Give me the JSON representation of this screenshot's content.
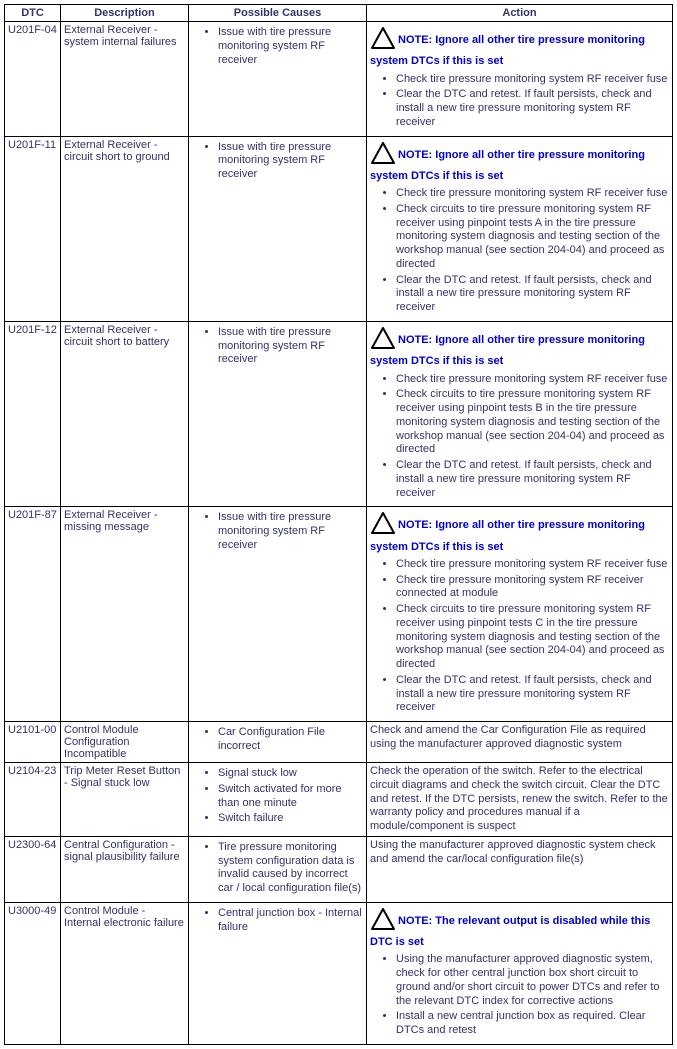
{
  "colors": {
    "text": "#333366",
    "note": "#0000cc",
    "border": "#000000",
    "background": "#ffffff"
  },
  "headers": {
    "dtc": "DTC",
    "description": "Description",
    "causes": "Possible Causes",
    "action": "Action"
  },
  "note_prefix": "NOTE: ",
  "rows": [
    {
      "dtc": "U201F-04",
      "desc": "External Receiver - system internal failures",
      "causes": [
        "Issue with tire pressure monitoring system RF receiver"
      ],
      "note": "Ignore all other tire pressure monitoring system DTCs if this is set",
      "actions": [
        "Check tire pressure monitoring system RF receiver fuse",
        "Clear the DTC and retest. If fault persists, check and install a new tire pressure monitoring system RF receiver"
      ]
    },
    {
      "dtc": "U201F-11",
      "desc": "External Receiver - circuit short to ground",
      "causes": [
        "Issue with tire pressure monitoring system RF receiver"
      ],
      "note": "Ignore all other tire pressure monitoring system DTCs if this is set",
      "actions": [
        "Check tire pressure monitoring system RF receiver fuse",
        "Check circuits to tire pressure monitoring system RF receiver using pinpoint tests A in the tire pressure monitoring system diagnosis and testing section of the workshop manual (see section 204-04) and proceed as directed",
        "Clear the DTC and retest. If fault persists, check and install a new tire pressure monitoring system RF receiver"
      ]
    },
    {
      "dtc": "U201F-12",
      "desc": "External Receiver - circuit short to battery",
      "causes": [
        "Issue with tire pressure monitoring system RF receiver"
      ],
      "note": "Ignore all other tire pressure monitoring system DTCs if this is set",
      "actions": [
        "Check tire pressure monitoring system RF receiver fuse",
        "Check circuits to tire pressure monitoring system RF receiver using pinpoint tests B in the tire pressure monitoring system diagnosis and testing section of the workshop manual (see section 204-04) and proceed as directed",
        "Clear the DTC and retest. If fault persists, check and install a new tire pressure monitoring system RF receiver"
      ]
    },
    {
      "dtc": "U201F-87",
      "desc": "External Receiver - missing message",
      "causes": [
        "Issue with tire pressure monitoring system RF receiver"
      ],
      "note": "Ignore all other tire pressure monitoring system DTCs if this is set",
      "actions": [
        "Check tire pressure monitoring system RF receiver fuse",
        "Check tire pressure monitoring system RF receiver connected at module",
        "Check circuits to tire pressure monitoring system RF receiver using pinpoint tests C in the tire pressure monitoring system diagnosis and testing section of the workshop manual (see section 204-04) and proceed as directed",
        "Clear the DTC and retest. If fault persists, check and install a new tire pressure monitoring system RF receiver"
      ]
    },
    {
      "dtc": "U2101-00",
      "desc": "Control Module Configuration Incompatible",
      "causes": [
        "Car Configuration File incorrect"
      ],
      "action_text": "Check and amend the Car Configuration File as required using the manufacturer approved diagnostic system"
    },
    {
      "dtc": "U2104-23",
      "desc": "Trip Meter Reset Button - Signal stuck low",
      "causes": [
        "Signal stuck low",
        "Switch activated for more than one minute",
        "Switch failure"
      ],
      "action_text": "Check the operation of the switch. Refer to the electrical circuit diagrams and check the switch circuit. Clear the DTC and retest. If the DTC persists, renew the switch. Refer to the warranty policy and procedures manual if a module/component is suspect"
    },
    {
      "dtc": "U2300-64",
      "desc": "Central Configuration - signal plausibility failure",
      "causes": [
        "Tire pressure monitoring system configuration data is invalid caused by incorrect car / local configuration file(s)"
      ],
      "action_text": "Using the manufacturer approved diagnostic system check and amend the car/local configuration file(s)"
    },
    {
      "dtc": "U3000-49",
      "desc": "Control Module - Internal electronic failure",
      "causes": [
        "Central junction box - Internal failure"
      ],
      "note": "The relevant output is disabled while this DTC is set",
      "actions": [
        "Using the manufacturer approved diagnostic system, check for other central junction box short circuit to ground and/or short circuit to power DTCs and refer to the relevant DTC index for corrective actions",
        "Install a new central junction box as required. Clear DTCs and retest"
      ]
    }
  ]
}
